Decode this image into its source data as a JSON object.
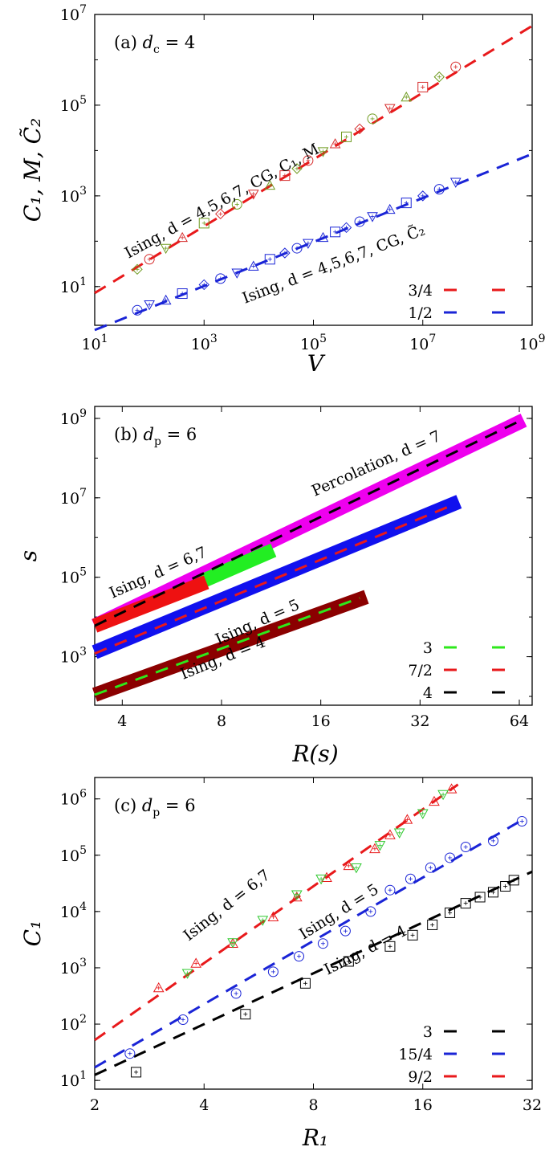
{
  "chart_data": [
    {
      "type": "scatter",
      "panel": "(a)",
      "dim_label": "d_c = 4",
      "xlabel": "V",
      "ylabel": "C₁, M, C̃₂",
      "xscale": "log10",
      "yscale": "log10",
      "xlim": [
        10,
        1000000000.0
      ],
      "ylim": [
        1.4,
        10000000.0
      ],
      "x_ticks": [
        10.0,
        1000.0,
        100000.0,
        10000000.0,
        1000000000.0
      ],
      "x_tick_labels": [
        [
          "10",
          "1"
        ],
        [
          "10",
          "3"
        ],
        [
          "10",
          "5"
        ],
        [
          "10",
          "7"
        ],
        [
          "10",
          "9"
        ]
      ],
      "y_ticks": [
        10.0,
        1000.0,
        100000.0,
        10000000.0
      ],
      "y_tick_labels": [
        [
          "10",
          "1"
        ],
        [
          "10",
          "3"
        ],
        [
          "10",
          "5"
        ],
        [
          "10",
          "7"
        ]
      ],
      "annotations": [
        "Ising, d = 4,5,6,7, CG, C₁, M",
        "Ising, d = 4,5,6,7, CG, C̃₂"
      ],
      "legend": [
        {
          "label": "3/4",
          "color": "#e8191b"
        },
        {
          "label": "1/2",
          "color": "#1a24d6"
        }
      ],
      "lines": [
        {
          "slope": 0.75,
          "x": [
            10,
            1000000000.0
          ],
          "y": [
            7.2,
            5600000.0
          ],
          "color": "#e8191b"
        },
        {
          "slope": 0.5,
          "x": [
            10,
            1000000000.0
          ],
          "y": [
            1.1,
            8400.0
          ],
          "color": "#1a24d6"
        }
      ],
      "series": [
        {
          "name": "C1, M",
          "color": "#6e9a1f",
          "alt_color": "#d62b2b",
          "x": [
            60,
            100,
            200,
            400,
            1000,
            2000,
            4000,
            8000,
            16000,
            30000,
            50000,
            80000,
            150000,
            250000,
            400000,
            700000,
            1200000,
            2500000,
            5000000,
            10000000,
            20000000,
            40000000
          ],
          "y": [
            24,
            40,
            70,
            120,
            250,
            400,
            650,
            1100,
            1700,
            2800,
            4000,
            6000,
            9500,
            14000,
            20000,
            30000,
            50000,
            85000,
            150000,
            250000,
            420000,
            700000
          ]
        },
        {
          "name": "C2",
          "color": "#1a24d6",
          "x": [
            60,
            100,
            200,
            400,
            1000,
            2000,
            4000,
            8000,
            16000,
            30000,
            50000,
            80000,
            150000,
            250000,
            400000,
            700000,
            1200000,
            2500000,
            5000000,
            10000000,
            20000000,
            40000000
          ],
          "y": [
            3,
            4,
            5,
            7,
            11,
            15,
            20,
            28,
            40,
            55,
            70,
            90,
            120,
            160,
            200,
            270,
            350,
            500,
            700,
            1000,
            1400,
            2000
          ]
        }
      ]
    },
    {
      "type": "scatter",
      "panel": "(b)",
      "dim_label": "d_p = 6",
      "xlabel": "R(s)",
      "ylabel": "s",
      "xscale": "log2",
      "yscale": "log10",
      "xlim": [
        3.3,
        70
      ],
      "ylim": [
        60,
        2000000000.0
      ],
      "x_ticks": [
        4,
        8,
        16,
        32,
        64
      ],
      "x_tick_labels": [
        "4",
        "8",
        "16",
        "32",
        "64"
      ],
      "y_ticks": [
        1000.0,
        100000.0,
        10000000.0,
        1000000000.0
      ],
      "y_tick_labels": [
        [
          "10",
          "3"
        ],
        [
          "10",
          "5"
        ],
        [
          "10",
          "7"
        ],
        [
          "10",
          "9"
        ]
      ],
      "annotations": [
        "Percolation, d = 7",
        "Ising, d = 6,7",
        "Ising, d = 5",
        "Ising, d = 4"
      ],
      "legend": [
        {
          "label": "3",
          "color": "#2ee81b"
        },
        {
          "label": "7/2",
          "color": "#e8191b"
        },
        {
          "label": "4",
          "color": "#000000"
        }
      ],
      "bands": [
        {
          "name": "Percolation, d=7",
          "color": "#ee00ee",
          "x": [
            3.3,
            66
          ],
          "y": [
            6000,
            900000000.0
          ]
        },
        {
          "name": "Ising, d=7",
          "color": "#22ee22",
          "x": [
            7,
            11.5
          ],
          "y": [
            80000,
            480000
          ]
        },
        {
          "name": "Ising, d=6",
          "color": "#ee1111",
          "x": [
            3.3,
            7.2
          ],
          "y": [
            6000,
            75000
          ]
        },
        {
          "name": "Ising, d=5",
          "color": "#1111ee",
          "x": [
            3.3,
            42
          ],
          "y": [
            1300,
            8000000.0
          ]
        },
        {
          "name": "Ising, d=4",
          "color": "#8b0000",
          "x": [
            3.3,
            22
          ],
          "y": [
            110,
            32000
          ]
        }
      ],
      "lines": [
        {
          "slope": 4,
          "x": [
            3.3,
            64
          ],
          "y": [
            6000,
            850000000.0
          ],
          "color": "#000000"
        },
        {
          "slope": 3.5,
          "x": [
            3.3,
            40
          ],
          "y": [
            1200,
            6500000.0
          ],
          "color": "#e8191b"
        },
        {
          "slope": 3,
          "x": [
            3.3,
            21
          ],
          "y": [
            110,
            30000
          ],
          "color": "#2ee81b"
        }
      ]
    },
    {
      "type": "scatter",
      "panel": "(c)",
      "dim_label": "d_p = 6",
      "xlabel": "R₁",
      "ylabel": "C₁",
      "xscale": "log2",
      "yscale": "log10",
      "xlim": [
        2,
        32
      ],
      "ylim": [
        7,
        2400000.0
      ],
      "x_ticks": [
        2,
        4,
        8,
        16,
        32
      ],
      "x_tick_labels": [
        "2",
        "4",
        "8",
        "16",
        "32"
      ],
      "y_ticks": [
        10,
        100,
        1000,
        10000,
        100000,
        1000000
      ],
      "y_tick_labels": [
        [
          "10",
          "1"
        ],
        [
          "10",
          "2"
        ],
        [
          "10",
          "3"
        ],
        [
          "10",
          "4"
        ],
        [
          "10",
          "5"
        ],
        [
          "10",
          "6"
        ]
      ],
      "annotations": [
        "Ising, d = 6,7",
        "Ising, d = 5",
        "Ising, d = 4"
      ],
      "legend": [
        {
          "label": "3",
          "color": "#000000"
        },
        {
          "label": "15/4",
          "color": "#1a24d6"
        },
        {
          "label": "9/2",
          "color": "#e8191b"
        }
      ],
      "lines": [
        {
          "slope": 3,
          "x": [
            2,
            32
          ],
          "y": [
            12.5,
            51000
          ],
          "color": "#000000"
        },
        {
          "slope": 3.75,
          "x": [
            2,
            30
          ],
          "y": [
            17,
            420000
          ],
          "color": "#1a24d6"
        },
        {
          "slope": 4.5,
          "x": [
            2,
            20
          ],
          "y": [
            52,
            1800000.0
          ],
          "color": "#e8191b"
        }
      ],
      "series": [
        {
          "name": "Ising, d=4",
          "marker": "square",
          "color": "#000000",
          "x": [
            2.6,
            5.2,
            7.6,
            10,
            13,
            15,
            17,
            19,
            21,
            23,
            25,
            27,
            28.5
          ],
          "y": [
            14,
            150,
            530,
            1300,
            2400,
            3800,
            5800,
            9500,
            14000,
            18000,
            22000,
            28000,
            36000
          ]
        },
        {
          "name": "Ising, d=5",
          "marker": "circle",
          "color": "#1a24d6",
          "x": [
            2.5,
            3.5,
            4.9,
            6.2,
            7.3,
            8.5,
            9.8,
            11.5,
            13,
            14.8,
            16.8,
            19,
            21,
            25,
            30
          ],
          "y": [
            30,
            120,
            350,
            850,
            1600,
            2700,
            4500,
            10000,
            24000,
            38000,
            60000,
            90000,
            140000,
            180000,
            400000
          ]
        },
        {
          "name": "Ising, d=6",
          "marker": "triangle-up",
          "color": "#e8191b",
          "x": [
            3,
            3.8,
            4.8,
            6.2,
            7.2,
            8.7,
            10,
            11.8,
            13,
            14.5,
            17.2,
            19.2
          ],
          "y": [
            440,
            1200,
            2700,
            8000,
            18000,
            40000,
            65000,
            130000,
            230000,
            430000,
            900000,
            1500000
          ]
        },
        {
          "name": "Ising, d=7",
          "marker": "triangle-down",
          "color": "#2ec82e",
          "x": [
            3.6,
            4.8,
            5.8,
            7.2,
            8.4,
            10.5,
            12.2,
            13.8,
            16,
            18.2
          ],
          "y": [
            800,
            2800,
            7000,
            20000,
            38000,
            60000,
            150000,
            250000,
            550000,
            1200000
          ]
        }
      ]
    }
  ]
}
